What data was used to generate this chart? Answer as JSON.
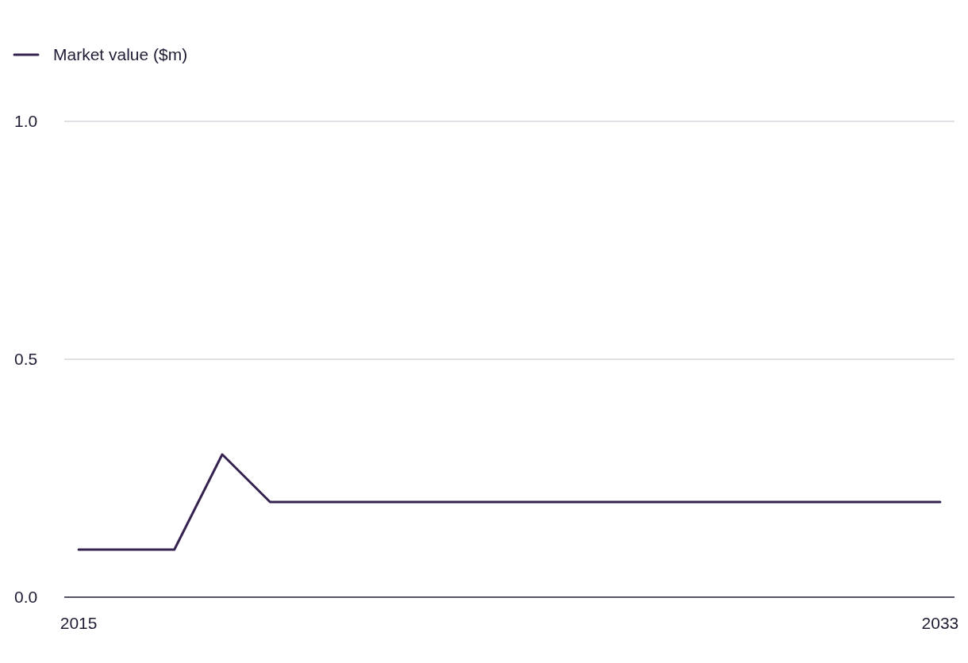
{
  "chart_data": {
    "type": "line",
    "categories": [
      "2015",
      null,
      null,
      null,
      null,
      null,
      null,
      null,
      null,
      null,
      null,
      null,
      null,
      null,
      null,
      null,
      null,
      null,
      "2033"
    ],
    "series": [
      {
        "name": "Market value ($m)",
        "color": "#35234f",
        "values": [
          0.1,
          0.1,
          0.1,
          0.3,
          0.2,
          0.2,
          0.2,
          0.2,
          0.2,
          0.2,
          0.2,
          0.2,
          0.2,
          0.2,
          0.2,
          0.2,
          0.2,
          0.2,
          0.2
        ]
      }
    ],
    "ylim": [
      0,
      1
    ],
    "yticks": [
      {
        "value": 0,
        "label": "0.0"
      },
      {
        "value": 0.5,
        "label": "0.5"
      },
      {
        "value": 1,
        "label": "1.0"
      }
    ],
    "grid": "y",
    "legend": "top left",
    "marker": "none",
    "line_style": "solid"
  }
}
